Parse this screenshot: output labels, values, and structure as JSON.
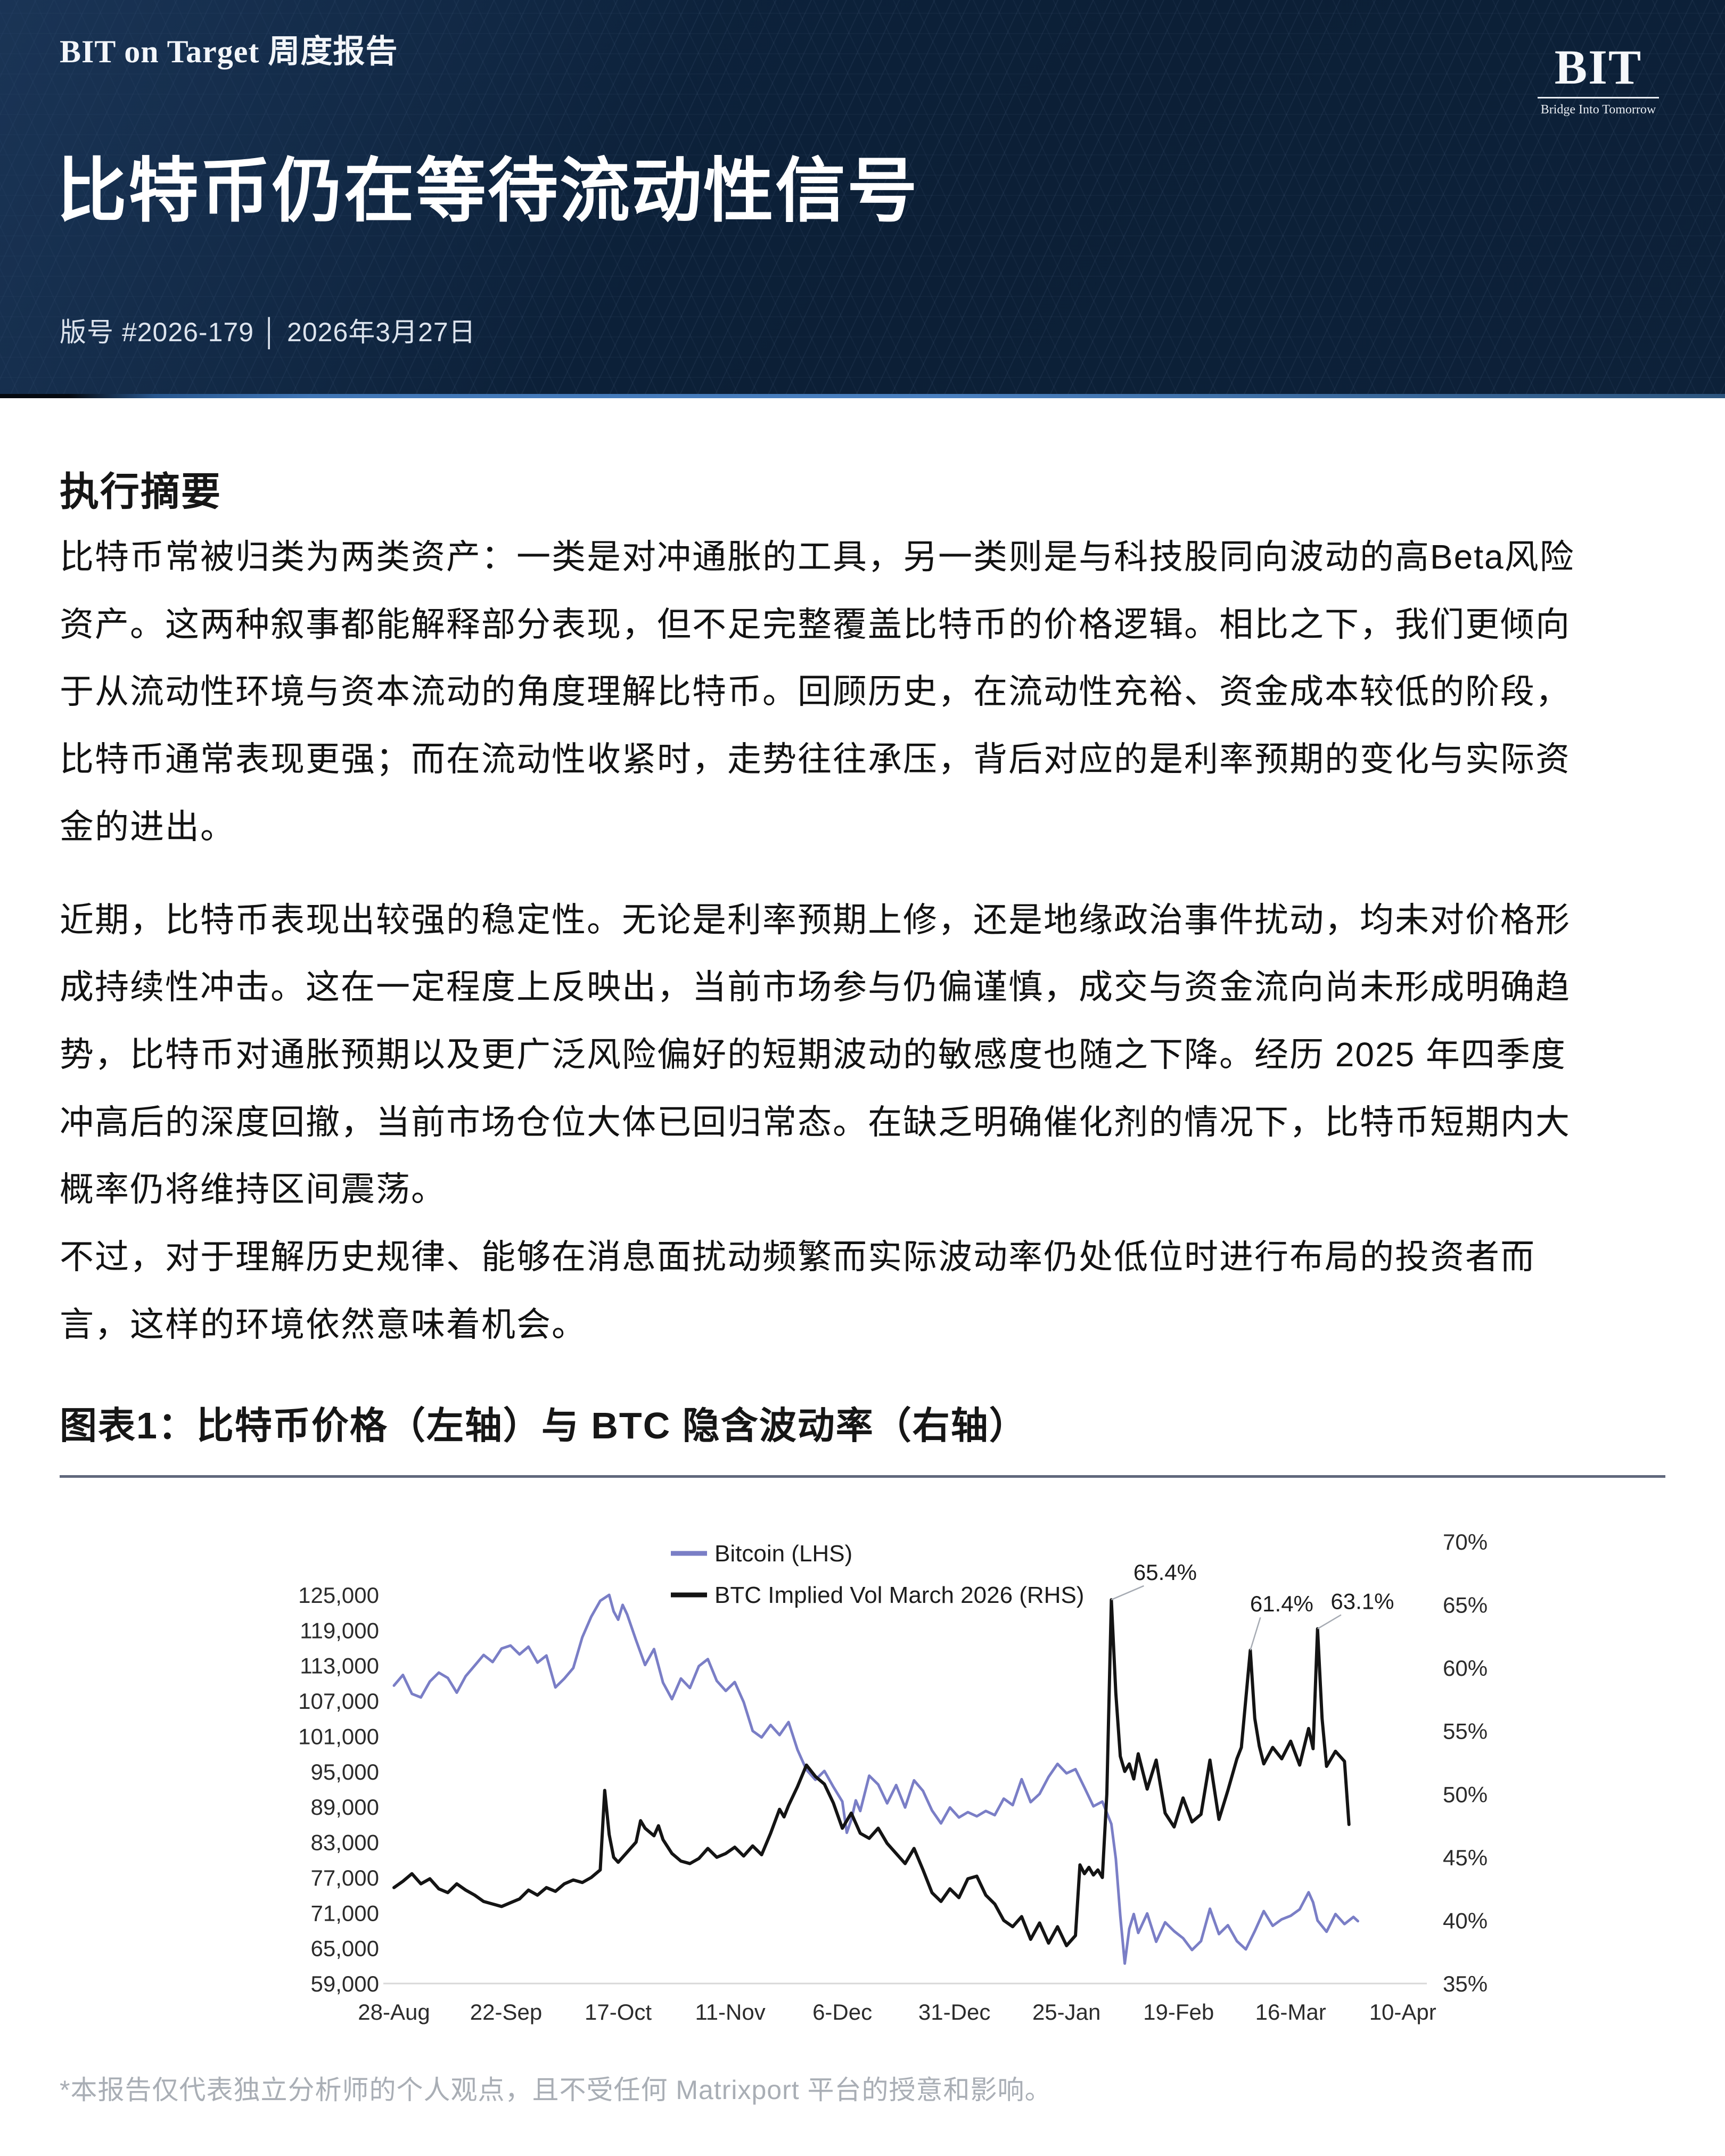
{
  "header": {
    "masthead": "BIT on Target 周度报告",
    "title": "比特币仍在等待流动性信号",
    "meta": "版号 #2026-179 │ 2026年3月27日",
    "bg_color": "#0d2139",
    "accent_colors": [
      "#05090f",
      "#4076b6",
      "#2d567f"
    ],
    "logo": {
      "text": "BIT",
      "tagline": "Bridge Into Tomorrow"
    }
  },
  "summary": {
    "heading": "执行摘要",
    "paragraphs": [
      "比特币常被归类为两类资产：一类是对冲通胀的工具，另一类则是与科技股同向波动的高Beta风险资产。这两种叙事都能解释部分表现，但不足完整覆盖比特币的价格逻辑。相比之下，我们更倾向于从流动性环境与资本流动的角度理解比特币。回顾历史，在流动性充裕、资金成本较低的阶段，比特币通常表现更强；而在流动性收紧时，走势往往承压，背后对应的是利率预期的变化与实际资金的进出。",
      "近期，比特币表现出较强的稳定性。无论是利率预期上修，还是地缘政治事件扰动，均未对价格形成持续性冲击。这在一定程度上反映出，当前市场参与仍偏谨慎，成交与资金流向尚未形成明确趋势，比特币对通胀预期以及更广泛风险偏好的短期波动的敏感度也随之下降。经历 2025 年四季度冲高后的深度回撤，当前市场仓位大体已回归常态。在缺乏明确催化剂的情况下，比特币短期内大概率仍将维持区间震荡。",
      "不过，对于理解历史规律、能够在消息面扰动频繁而实际波动率仍处低位时进行布局的投资者而言，这样的环境依然意味着机会。"
    ]
  },
  "figure": {
    "heading": "图表1：比特币价格（左轴）与 BTC 隐含波动率（右轴）",
    "footnote": "*本报告仅代表独立分析师的个人观点，且不受任何 Matrixport 平台的授意和影响。"
  },
  "chart_data": {
    "type": "line",
    "title": "比特币价格（左轴）与 BTC 隐含波动率（右轴）",
    "grid": false,
    "legend_position": "top-inside",
    "legend": [
      {
        "name": "Bitcoin (LHS)",
        "color": "#7a7ec6"
      },
      {
        "name": "BTC Implied Vol March 2026 (RHS)",
        "color": "#141414"
      }
    ],
    "x_axis": {
      "tick_labels": [
        "28-Aug",
        "22-Sep",
        "17-Oct",
        "11-Nov",
        "6-Dec",
        "31-Dec",
        "25-Jan",
        "19-Feb",
        "16-Mar",
        "10-Apr"
      ],
      "tick_days": [
        0,
        25,
        50,
        75,
        100,
        125,
        150,
        175,
        200,
        225
      ],
      "day_span": 228
    },
    "y_left": {
      "ticks": [
        125000,
        119000,
        113000,
        107000,
        101000,
        95000,
        89000,
        83000,
        77000,
        71000,
        65000,
        59000
      ],
      "lim": [
        59000,
        125000
      ]
    },
    "y_right": {
      "ticks": [
        70,
        65,
        60,
        55,
        50,
        45,
        40,
        35
      ],
      "lim": [
        35,
        70
      ],
      "suffix": "%"
    },
    "series": [
      {
        "name": "Bitcoin (LHS)",
        "axis": "left",
        "color": "#7a7ec6",
        "width": 5,
        "points": [
          [
            0,
            109600
          ],
          [
            2,
            111400
          ],
          [
            4,
            108200
          ],
          [
            6,
            107600
          ],
          [
            8,
            110300
          ],
          [
            10,
            111800
          ],
          [
            12,
            110900
          ],
          [
            14,
            108400
          ],
          [
            16,
            111200
          ],
          [
            18,
            113000
          ],
          [
            20,
            114800
          ],
          [
            22,
            113600
          ],
          [
            24,
            115900
          ],
          [
            26,
            116400
          ],
          [
            28,
            114900
          ],
          [
            30,
            116200
          ],
          [
            32,
            113500
          ],
          [
            34,
            114700
          ],
          [
            36,
            109300
          ],
          [
            38,
            110800
          ],
          [
            40,
            112600
          ],
          [
            42,
            117800
          ],
          [
            44,
            121300
          ],
          [
            46,
            124000
          ],
          [
            48,
            125000
          ],
          [
            49,
            122200
          ],
          [
            50,
            120800
          ],
          [
            51,
            123300
          ],
          [
            52,
            121700
          ],
          [
            54,
            117300
          ],
          [
            56,
            113100
          ],
          [
            58,
            115800
          ],
          [
            60,
            110100
          ],
          [
            62,
            107300
          ],
          [
            64,
            110800
          ],
          [
            66,
            109200
          ],
          [
            68,
            112900
          ],
          [
            70,
            114100
          ],
          [
            72,
            110400
          ],
          [
            74,
            108700
          ],
          [
            76,
            110200
          ],
          [
            78,
            106800
          ],
          [
            80,
            101900
          ],
          [
            82,
            100800
          ],
          [
            84,
            102900
          ],
          [
            86,
            101200
          ],
          [
            88,
            103400
          ],
          [
            90,
            98700
          ],
          [
            92,
            95300
          ],
          [
            94,
            93600
          ],
          [
            96,
            95100
          ],
          [
            98,
            92400
          ],
          [
            100,
            89900
          ],
          [
            101,
            84600
          ],
          [
            102,
            86800
          ],
          [
            103,
            90100
          ],
          [
            104,
            88300
          ],
          [
            106,
            94300
          ],
          [
            108,
            92800
          ],
          [
            110,
            89600
          ],
          [
            112,
            92700
          ],
          [
            114,
            88900
          ],
          [
            116,
            93500
          ],
          [
            118,
            91700
          ],
          [
            120,
            88400
          ],
          [
            122,
            86200
          ],
          [
            124,
            88900
          ],
          [
            126,
            87200
          ],
          [
            128,
            88100
          ],
          [
            130,
            87400
          ],
          [
            132,
            88300
          ],
          [
            134,
            87600
          ],
          [
            136,
            90400
          ],
          [
            138,
            89300
          ],
          [
            140,
            93700
          ],
          [
            142,
            89800
          ],
          [
            144,
            91200
          ],
          [
            146,
            94100
          ],
          [
            148,
            96300
          ],
          [
            150,
            94700
          ],
          [
            152,
            95400
          ],
          [
            154,
            92300
          ],
          [
            156,
            89100
          ],
          [
            158,
            89900
          ],
          [
            160,
            86100
          ],
          [
            161,
            80200
          ],
          [
            162,
            70500
          ],
          [
            163,
            62400
          ],
          [
            164,
            68300
          ],
          [
            165,
            70800
          ],
          [
            166,
            67600
          ],
          [
            168,
            70900
          ],
          [
            170,
            66100
          ],
          [
            172,
            69400
          ],
          [
            174,
            67900
          ],
          [
            176,
            66700
          ],
          [
            178,
            64700
          ],
          [
            180,
            66200
          ],
          [
            182,
            71700
          ],
          [
            184,
            67400
          ],
          [
            186,
            68900
          ],
          [
            188,
            66200
          ],
          [
            190,
            64800
          ],
          [
            192,
            67900
          ],
          [
            194,
            71300
          ],
          [
            196,
            68800
          ],
          [
            198,
            69900
          ],
          [
            200,
            70500
          ],
          [
            202,
            71600
          ],
          [
            204,
            74500
          ],
          [
            205,
            72800
          ],
          [
            206,
            69700
          ],
          [
            208,
            67800
          ],
          [
            210,
            70800
          ],
          [
            212,
            69100
          ],
          [
            214,
            70300
          ],
          [
            215,
            69600
          ]
        ]
      },
      {
        "name": "BTC Implied Vol March 2026 (RHS)",
        "axis": "right",
        "color": "#141414",
        "width": 6,
        "points": [
          [
            0,
            42.6
          ],
          [
            2,
            43.1
          ],
          [
            4,
            43.7
          ],
          [
            6,
            42.9
          ],
          [
            8,
            43.3
          ],
          [
            10,
            42.5
          ],
          [
            12,
            42.2
          ],
          [
            14,
            42.9
          ],
          [
            16,
            42.4
          ],
          [
            18,
            42.0
          ],
          [
            20,
            41.5
          ],
          [
            22,
            41.3
          ],
          [
            24,
            41.1
          ],
          [
            26,
            41.4
          ],
          [
            28,
            41.7
          ],
          [
            30,
            42.4
          ],
          [
            32,
            42.0
          ],
          [
            34,
            42.6
          ],
          [
            36,
            42.3
          ],
          [
            38,
            42.9
          ],
          [
            40,
            43.2
          ],
          [
            42,
            43.0
          ],
          [
            44,
            43.4
          ],
          [
            46,
            44.0
          ],
          [
            47,
            50.3
          ],
          [
            48,
            46.8
          ],
          [
            49,
            45.0
          ],
          [
            50,
            44.6
          ],
          [
            52,
            45.4
          ],
          [
            54,
            46.2
          ],
          [
            55,
            47.9
          ],
          [
            56,
            47.3
          ],
          [
            58,
            46.7
          ],
          [
            59,
            47.5
          ],
          [
            60,
            46.4
          ],
          [
            62,
            45.3
          ],
          [
            64,
            44.7
          ],
          [
            66,
            44.5
          ],
          [
            68,
            44.9
          ],
          [
            70,
            45.7
          ],
          [
            72,
            45.0
          ],
          [
            74,
            45.3
          ],
          [
            76,
            45.8
          ],
          [
            78,
            45.1
          ],
          [
            80,
            45.9
          ],
          [
            82,
            45.2
          ],
          [
            84,
            46.9
          ],
          [
            86,
            48.8
          ],
          [
            87,
            48.2
          ],
          [
            88,
            49.1
          ],
          [
            90,
            50.6
          ],
          [
            92,
            52.3
          ],
          [
            94,
            51.4
          ],
          [
            96,
            50.8
          ],
          [
            98,
            49.3
          ],
          [
            100,
            47.3
          ],
          [
            102,
            48.5
          ],
          [
            104,
            46.9
          ],
          [
            106,
            46.5
          ],
          [
            108,
            47.3
          ],
          [
            110,
            46.1
          ],
          [
            112,
            45.3
          ],
          [
            114,
            44.5
          ],
          [
            116,
            45.7
          ],
          [
            118,
            44.0
          ],
          [
            120,
            42.2
          ],
          [
            122,
            41.5
          ],
          [
            124,
            42.5
          ],
          [
            126,
            41.8
          ],
          [
            128,
            43.3
          ],
          [
            130,
            43.5
          ],
          [
            132,
            42.0
          ],
          [
            134,
            41.3
          ],
          [
            136,
            40.0
          ],
          [
            138,
            39.5
          ],
          [
            140,
            40.3
          ],
          [
            142,
            38.5
          ],
          [
            144,
            39.8
          ],
          [
            146,
            38.2
          ],
          [
            148,
            39.5
          ],
          [
            150,
            38.0
          ],
          [
            152,
            38.8
          ],
          [
            153,
            44.4
          ],
          [
            154,
            43.7
          ],
          [
            155,
            44.2
          ],
          [
            156,
            43.6
          ],
          [
            157,
            44.0
          ],
          [
            158,
            43.4
          ],
          [
            159,
            50.0
          ],
          [
            160,
            65.4
          ],
          [
            161,
            58.0
          ],
          [
            162,
            53.0
          ],
          [
            163,
            51.8
          ],
          [
            164,
            52.4
          ],
          [
            165,
            51.2
          ],
          [
            166,
            53.2
          ],
          [
            168,
            50.4
          ],
          [
            170,
            52.7
          ],
          [
            172,
            48.5
          ],
          [
            174,
            47.4
          ],
          [
            176,
            49.7
          ],
          [
            178,
            47.8
          ],
          [
            180,
            48.4
          ],
          [
            182,
            52.7
          ],
          [
            184,
            48.0
          ],
          [
            186,
            50.3
          ],
          [
            188,
            52.8
          ],
          [
            189,
            53.7
          ],
          [
            191,
            61.4
          ],
          [
            192,
            56.0
          ],
          [
            193,
            53.8
          ],
          [
            194,
            52.4
          ],
          [
            196,
            53.7
          ],
          [
            198,
            52.8
          ],
          [
            200,
            54.2
          ],
          [
            202,
            52.3
          ],
          [
            204,
            55.2
          ],
          [
            205,
            53.6
          ],
          [
            206,
            63.1
          ],
          [
            207,
            56.0
          ],
          [
            208,
            52.2
          ],
          [
            210,
            53.4
          ],
          [
            212,
            52.6
          ],
          [
            213,
            47.6
          ]
        ]
      }
    ],
    "annotations": [
      {
        "text": "65.4%",
        "tip": [
          160,
          65.4
        ],
        "label": [
          172,
          67.6
        ]
      },
      {
        "text": "61.4%",
        "tip": [
          191,
          61.4
        ],
        "label": [
          198,
          65.1
        ]
      },
      {
        "text": "63.1%",
        "tip": [
          206,
          63.1
        ],
        "label": [
          216,
          65.3
        ]
      }
    ]
  }
}
